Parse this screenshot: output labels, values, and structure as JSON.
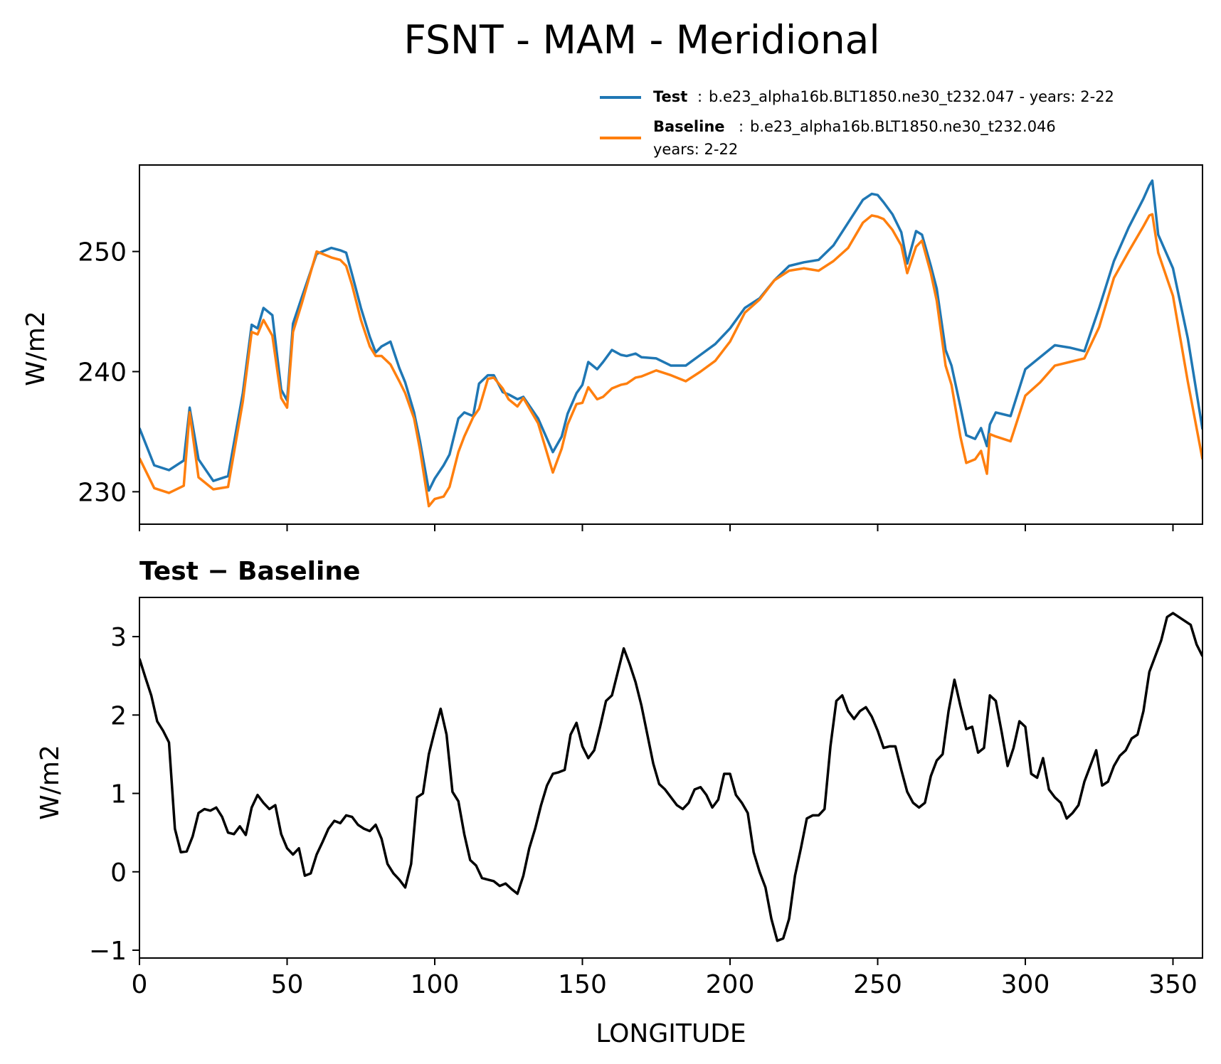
{
  "title": "FSNT - MAM - Meridional",
  "legend": {
    "test_label": "Test",
    "test_text": "b.e23_alpha16b.BLT1850.ne30_t232.047 - years: 2-22",
    "baseline_label": "Baseline",
    "baseline_text_line1": "b.e23_alpha16b.BLT1850.ne30_t232.046",
    "baseline_text_line2": "years: 2-22",
    "separator": ":"
  },
  "colors": {
    "test": "#1f77b4",
    "baseline": "#ff7f0e",
    "diff": "#000000"
  },
  "chart_data": [
    {
      "type": "line",
      "ylabel": "W/m2",
      "xlim": [
        0,
        360
      ],
      "ylim": [
        227.3,
        257.2
      ],
      "xticks": [
        0,
        50,
        100,
        150,
        200,
        250,
        300,
        350
      ],
      "yticks": [
        230,
        240,
        250
      ],
      "ytick_labels": [
        "230",
        "240",
        "250"
      ],
      "series": [
        {
          "name": "Test",
          "x": [
            0,
            5,
            10,
            15,
            17,
            20,
            25,
            30,
            35,
            38,
            40,
            42,
            45,
            48,
            50,
            52,
            55,
            60,
            65,
            68,
            70,
            72,
            75,
            78,
            80,
            82,
            85,
            88,
            90,
            93,
            95,
            98,
            100,
            103,
            105,
            108,
            110,
            113,
            115,
            118,
            120,
            123,
            125,
            128,
            130,
            135,
            140,
            143,
            145,
            148,
            150,
            152,
            155,
            157,
            160,
            163,
            165,
            168,
            170,
            175,
            180,
            185,
            190,
            195,
            200,
            205,
            210,
            215,
            220,
            225,
            230,
            235,
            240,
            245,
            248,
            250,
            252,
            255,
            258,
            260,
            263,
            265,
            268,
            270,
            273,
            275,
            278,
            280,
            283,
            285,
            287,
            288,
            290,
            295,
            300,
            305,
            310,
            315,
            320,
            325,
            330,
            335,
            340,
            342,
            343,
            345,
            350,
            355,
            360
          ],
          "values": [
            235.3,
            232.2,
            231.8,
            232.6,
            237.0,
            232.7,
            230.9,
            231.3,
            238.2,
            243.9,
            243.6,
            245.3,
            244.7,
            238.5,
            237.6,
            244.0,
            246.2,
            249.8,
            250.3,
            250.1,
            249.9,
            248.1,
            245.3,
            242.9,
            241.6,
            242.1,
            242.5,
            240.3,
            239.1,
            236.6,
            234.2,
            230.1,
            231.1,
            232.2,
            233.1,
            236.1,
            236.6,
            236.3,
            239.0,
            239.7,
            239.7,
            238.3,
            238.1,
            237.7,
            237.9,
            236.1,
            233.3,
            234.6,
            236.5,
            238.2,
            238.9,
            240.8,
            240.2,
            240.8,
            241.8,
            241.4,
            241.3,
            241.5,
            241.2,
            241.1,
            240.5,
            240.5,
            241.4,
            242.3,
            243.6,
            245.3,
            246.1,
            247.6,
            248.8,
            249.1,
            249.3,
            250.5,
            252.4,
            254.3,
            254.8,
            254.7,
            254.1,
            253.1,
            251.6,
            249.0,
            251.7,
            251.4,
            248.8,
            246.9,
            241.8,
            240.5,
            237.1,
            234.7,
            234.4,
            235.3,
            233.8,
            235.6,
            236.6,
            236.3,
            240.2,
            241.2,
            242.2,
            242.0,
            241.7,
            245.3,
            249.2,
            252.0,
            254.4,
            255.5,
            255.9,
            251.4,
            248.6,
            242.8,
            235.2
          ]
        },
        {
          "name": "Baseline",
          "x": [
            0,
            5,
            10,
            15,
            17,
            20,
            25,
            30,
            35,
            38,
            40,
            42,
            45,
            48,
            50,
            52,
            55,
            60,
            65,
            68,
            70,
            72,
            75,
            78,
            80,
            82,
            85,
            88,
            90,
            93,
            95,
            98,
            100,
            103,
            105,
            108,
            110,
            113,
            115,
            118,
            120,
            123,
            125,
            128,
            130,
            135,
            140,
            143,
            145,
            148,
            150,
            152,
            155,
            157,
            160,
            163,
            165,
            168,
            170,
            175,
            180,
            185,
            190,
            195,
            200,
            205,
            210,
            215,
            220,
            225,
            230,
            235,
            240,
            245,
            248,
            250,
            252,
            255,
            258,
            260,
            263,
            265,
            268,
            270,
            273,
            275,
            278,
            280,
            283,
            285,
            287,
            288,
            290,
            295,
            300,
            305,
            310,
            315,
            320,
            325,
            330,
            335,
            340,
            342,
            343,
            345,
            350,
            355,
            360
          ],
          "values": [
            232.8,
            230.3,
            229.9,
            230.5,
            236.6,
            231.2,
            230.2,
            230.4,
            237.5,
            243.3,
            243.1,
            244.3,
            243.0,
            237.8,
            237.0,
            243.3,
            245.7,
            250.0,
            249.5,
            249.3,
            248.8,
            247.2,
            244.3,
            242.1,
            241.3,
            241.3,
            240.6,
            239.2,
            238.2,
            236.1,
            233.5,
            228.8,
            229.4,
            229.6,
            230.4,
            233.3,
            234.6,
            236.2,
            236.9,
            239.4,
            239.5,
            238.6,
            237.7,
            237.1,
            237.8,
            235.7,
            231.6,
            233.6,
            235.6,
            237.3,
            237.4,
            238.7,
            237.7,
            237.9,
            238.6,
            238.9,
            239.0,
            239.5,
            239.6,
            240.1,
            239.7,
            239.2,
            240.0,
            240.9,
            242.5,
            244.9,
            246.0,
            247.6,
            248.4,
            248.6,
            248.4,
            249.2,
            250.3,
            252.4,
            253.0,
            252.9,
            252.7,
            251.8,
            250.5,
            248.2,
            250.4,
            250.9,
            248.2,
            245.9,
            240.5,
            238.9,
            234.6,
            232.4,
            232.7,
            233.4,
            231.5,
            234.8,
            234.6,
            234.2,
            238.0,
            239.1,
            240.5,
            240.8,
            241.1,
            243.7,
            247.8,
            250.0,
            252.1,
            253.0,
            253.1,
            249.9,
            246.3,
            239.2,
            232.7
          ]
        }
      ]
    },
    {
      "type": "line",
      "title": "Test − Baseline",
      "xlabel": "LONGITUDE",
      "ylabel": "W/m2",
      "xlim": [
        0,
        360
      ],
      "ylim": [
        -1.1,
        3.5
      ],
      "xticks": [
        0,
        50,
        100,
        150,
        200,
        250,
        300,
        350
      ],
      "xtick_labels": [
        "0",
        "50",
        "100",
        "150",
        "200",
        "250",
        "300",
        "350"
      ],
      "yticks": [
        -1,
        0,
        1,
        2,
        3
      ],
      "ytick_labels": [
        "−1",
        "0",
        "1",
        "2",
        "3"
      ],
      "series": [
        {
          "name": "Test − Baseline",
          "x": [
            0,
            2,
            4,
            6,
            8,
            10,
            12,
            14,
            16,
            18,
            20,
            22,
            24,
            26,
            28,
            30,
            32,
            34,
            36,
            38,
            40,
            42,
            44,
            46,
            48,
            50,
            52,
            54,
            56,
            58,
            60,
            62,
            64,
            66,
            68,
            70,
            72,
            74,
            76,
            78,
            80,
            82,
            84,
            86,
            88,
            90,
            92,
            94,
            96,
            98,
            100,
            102,
            104,
            106,
            108,
            110,
            112,
            114,
            116,
            118,
            120,
            122,
            124,
            126,
            128,
            130,
            132,
            134,
            136,
            138,
            140,
            142,
            144,
            146,
            148,
            150,
            152,
            154,
            156,
            158,
            160,
            162,
            164,
            166,
            168,
            170,
            172,
            174,
            176,
            178,
            180,
            182,
            184,
            186,
            188,
            190,
            192,
            194,
            196,
            198,
            200,
            202,
            204,
            206,
            208,
            210,
            212,
            214,
            216,
            218,
            220,
            222,
            224,
            226,
            228,
            230,
            232,
            234,
            236,
            238,
            240,
            242,
            244,
            246,
            248,
            250,
            252,
            254,
            256,
            258,
            260,
            262,
            264,
            266,
            268,
            270,
            272,
            274,
            276,
            278,
            280,
            282,
            284,
            286,
            288,
            290,
            292,
            294,
            296,
            298,
            300,
            302,
            304,
            306,
            308,
            310,
            312,
            314,
            316,
            318,
            320,
            322,
            324,
            326,
            328,
            330,
            332,
            334,
            336,
            338,
            340,
            342,
            344,
            346,
            348,
            350,
            352,
            354,
            356,
            358,
            360
          ],
          "values": [
            2.72,
            2.48,
            2.25,
            1.92,
            1.8,
            1.65,
            0.55,
            0.25,
            0.26,
            0.45,
            0.75,
            0.8,
            0.78,
            0.82,
            0.7,
            0.5,
            0.48,
            0.58,
            0.47,
            0.82,
            0.98,
            0.88,
            0.8,
            0.85,
            0.48,
            0.3,
            0.22,
            0.3,
            -0.05,
            -0.02,
            0.22,
            0.38,
            0.55,
            0.65,
            0.62,
            0.72,
            0.7,
            0.6,
            0.55,
            0.52,
            0.6,
            0.42,
            0.1,
            -0.02,
            -0.1,
            -0.2,
            0.1,
            0.95,
            1.0,
            1.5,
            1.8,
            2.08,
            1.75,
            1.02,
            0.9,
            0.48,
            0.15,
            0.08,
            -0.08,
            -0.1,
            -0.12,
            -0.18,
            -0.15,
            -0.22,
            -0.28,
            -0.05,
            0.3,
            0.55,
            0.85,
            1.1,
            1.25,
            1.27,
            1.3,
            1.75,
            1.9,
            1.6,
            1.45,
            1.55,
            1.85,
            2.18,
            2.25,
            2.55,
            2.85,
            2.65,
            2.42,
            2.12,
            1.75,
            1.38,
            1.12,
            1.05,
            0.95,
            0.85,
            0.8,
            0.88,
            1.05,
            1.08,
            0.98,
            0.82,
            0.92,
            1.25,
            1.25,
            0.98,
            0.88,
            0.75,
            0.25,
            0.0,
            -0.2,
            -0.6,
            -0.88,
            -0.85,
            -0.6,
            -0.05,
            0.3,
            0.68,
            0.72,
            0.72,
            0.8,
            1.6,
            2.18,
            2.25,
            2.05,
            1.95,
            2.05,
            2.1,
            1.98,
            1.8,
            1.58,
            1.6,
            1.6,
            1.3,
            1.02,
            0.88,
            0.82,
            0.88,
            1.22,
            1.42,
            1.5,
            2.05,
            2.45,
            2.12,
            1.82,
            1.85,
            1.52,
            1.58,
            2.25,
            2.18,
            1.78,
            1.35,
            1.58,
            1.92,
            1.85,
            1.25,
            1.2,
            1.45,
            1.05,
            0.95,
            0.88,
            0.68,
            0.75,
            0.85,
            1.15,
            1.35,
            1.55,
            1.1,
            1.15,
            1.35,
            1.48,
            1.55,
            1.7,
            1.75,
            2.05,
            2.55,
            2.75,
            2.95,
            3.25,
            3.3,
            3.25,
            3.2,
            3.15,
            2.9,
            2.75
          ]
        }
      ]
    }
  ]
}
